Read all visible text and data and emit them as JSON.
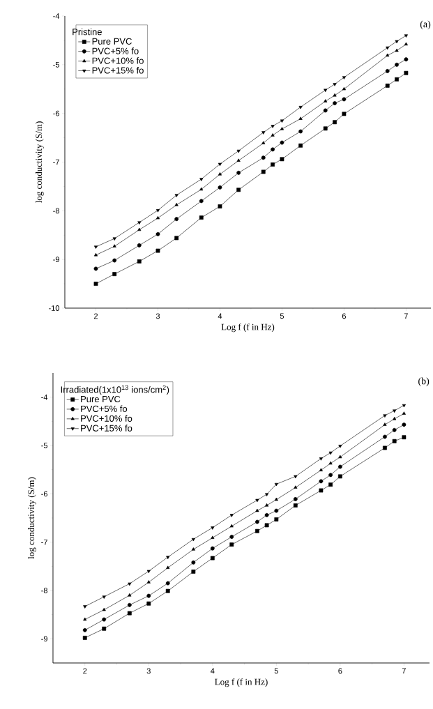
{
  "chart_data": [
    {
      "type": "line",
      "xlabel": "Log f (f in Hz)",
      "ylabel": "log conductivity (S/m)",
      "legend_title": "Pristine",
      "legend": "top left",
      "annotations": [
        "(a)"
      ],
      "xlim": [
        1.5,
        7.4
      ],
      "xticks": [
        2,
        3,
        4,
        5,
        6,
        7
      ],
      "ylim": [
        -10,
        -4
      ],
      "yticks": [
        -10,
        -9,
        -8,
        -7,
        -6,
        -5,
        -4
      ],
      "x": [
        2,
        2.3,
        2.7,
        3,
        3.3,
        3.7,
        4,
        4.3,
        4.7,
        4.85,
        5,
        5.3,
        5.7,
        5.85,
        6,
        6.7,
        6.85,
        7
      ],
      "line_style": "solid",
      "series": [
        {
          "name": "Pure PVC",
          "color": "#000000",
          "marker": "square",
          "values": [
            -9.5,
            -9.3,
            -9.04,
            -8.82,
            -8.56,
            -8.14,
            -7.91,
            -7.57,
            -7.2,
            -7.05,
            -6.94,
            -6.66,
            -6.31,
            -6.18,
            -6.01,
            -5.43,
            -5.3,
            -5.17
          ]
        },
        {
          "name": "PVC+5% fo",
          "color": "#000000",
          "marker": "circle",
          "values": [
            -9.19,
            -9.02,
            -8.71,
            -8.48,
            -8.17,
            -7.8,
            -7.52,
            -7.22,
            -6.91,
            -6.74,
            -6.6,
            -6.37,
            -5.94,
            -5.79,
            -5.71,
            -5.13,
            -5.0,
            -4.89
          ]
        },
        {
          "name": "PVC+10% fo",
          "color": "#000000",
          "marker": "triangle",
          "values": [
            -8.91,
            -8.73,
            -8.39,
            -8.15,
            -7.88,
            -7.56,
            -7.25,
            -6.97,
            -6.61,
            -6.45,
            -6.32,
            -6.11,
            -5.75,
            -5.63,
            -5.5,
            -4.81,
            -4.71,
            -4.58
          ]
        },
        {
          "name": "PVC+15% fo",
          "color": "#000000",
          "marker": "triangle-down",
          "values": [
            -8.74,
            -8.57,
            -8.24,
            -7.99,
            -7.68,
            -7.35,
            -7.04,
            -6.77,
            -6.39,
            -6.26,
            -6.15,
            -5.87,
            -5.52,
            -5.4,
            -5.26,
            -4.65,
            -4.52,
            -4.4
          ]
        }
      ]
    },
    {
      "type": "line",
      "xlabel": "Log f (f in Hz)",
      "ylabel": "log conductivity (S/m)",
      "legend_title": "Irradiated(1x10$^{13}$ ions/cm$^{2}$)",
      "legend": "top left",
      "annotations": [
        "(b)"
      ],
      "xlim": [
        1.5,
        7.4
      ],
      "xticks": [
        2,
        3,
        4,
        5,
        6,
        7
      ],
      "ylim": [
        -9.5,
        -3.5
      ],
      "yticks": [
        -9,
        -8,
        -7,
        -6,
        -5,
        -4
      ],
      "x": [
        2,
        2.3,
        2.7,
        3,
        3.3,
        3.7,
        4,
        4.3,
        4.7,
        4.85,
        5,
        5.3,
        5.7,
        5.85,
        6,
        6.7,
        6.85,
        7
      ],
      "line_style": "solid",
      "series": [
        {
          "name": "Pure PVC",
          "color": "#000000",
          "marker": "square",
          "values": [
            -8.98,
            -8.79,
            -8.47,
            -8.27,
            -8.01,
            -7.61,
            -7.33,
            -7.05,
            -6.77,
            -6.65,
            -6.53,
            -6.24,
            -5.93,
            -5.81,
            -5.64,
            -5.05,
            -4.91,
            -4.83
          ]
        },
        {
          "name": "PVC+5% fo",
          "color": "#000000",
          "marker": "circle",
          "values": [
            -8.82,
            -8.6,
            -8.3,
            -8.11,
            -7.85,
            -7.42,
            -7.13,
            -6.89,
            -6.58,
            -6.44,
            -6.35,
            -6.11,
            -5.74,
            -5.61,
            -5.44,
            -4.82,
            -4.68,
            -4.57
          ]
        },
        {
          "name": "PVC+10% fo",
          "color": "#000000",
          "marker": "triangle",
          "values": [
            -8.6,
            -8.4,
            -8.1,
            -7.83,
            -7.53,
            -7.15,
            -6.91,
            -6.67,
            -6.35,
            -6.24,
            -6.12,
            -5.87,
            -5.51,
            -5.37,
            -5.24,
            -4.57,
            -4.45,
            -4.34
          ]
        },
        {
          "name": "PVC+15% fo",
          "color": "#000000",
          "marker": "triangle-down",
          "values": [
            -8.33,
            -8.13,
            -7.86,
            -7.6,
            -7.31,
            -6.94,
            -6.7,
            -6.44,
            -6.13,
            -6.01,
            -5.8,
            -5.64,
            -5.27,
            -5.15,
            -5.01,
            -4.38,
            -4.28,
            -4.17
          ]
        }
      ]
    }
  ]
}
